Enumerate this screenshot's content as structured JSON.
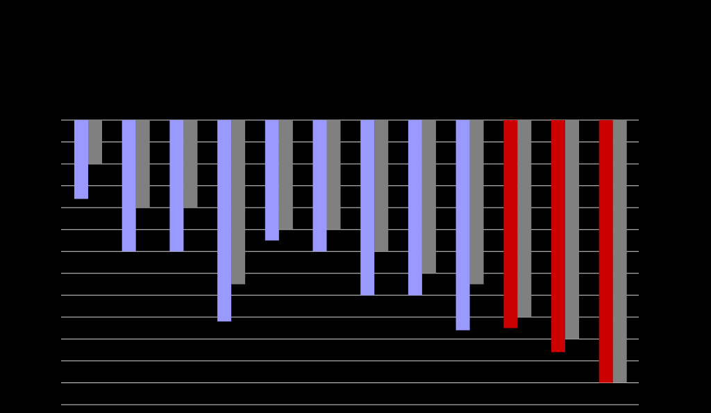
{
  "chart_data": {
    "type": "bar",
    "orientation": "downward",
    "ylabel": "",
    "ylim": [
      0,
      13
    ],
    "y_ticks": [],
    "grid": true,
    "legend": "none",
    "categories": [
      "",
      "",
      "",
      "",
      "",
      "",
      "",
      "",
      "",
      "",
      "",
      ""
    ],
    "series": [
      {
        "values": [
          3.6,
          6,
          6,
          9.2,
          5.5,
          6,
          8,
          8,
          9.6,
          9.5,
          10.6,
          12
        ],
        "colors": [
          "#9999ff",
          "#9999ff",
          "#9999ff",
          "#9999ff",
          "#9999ff",
          "#9999ff",
          "#9999ff",
          "#9999ff",
          "#9999ff",
          "#cc0000",
          "#cc0000",
          "#cc0000"
        ]
      },
      {
        "values": [
          2,
          4,
          4,
          7.5,
          5,
          5,
          6,
          7,
          7.5,
          9,
          10,
          12
        ],
        "colors": [
          "#808080",
          "#808080",
          "#808080",
          "#808080",
          "#808080",
          "#808080",
          "#808080",
          "#808080",
          "#808080",
          "#808080",
          "#808080",
          "#808080"
        ]
      }
    ]
  }
}
